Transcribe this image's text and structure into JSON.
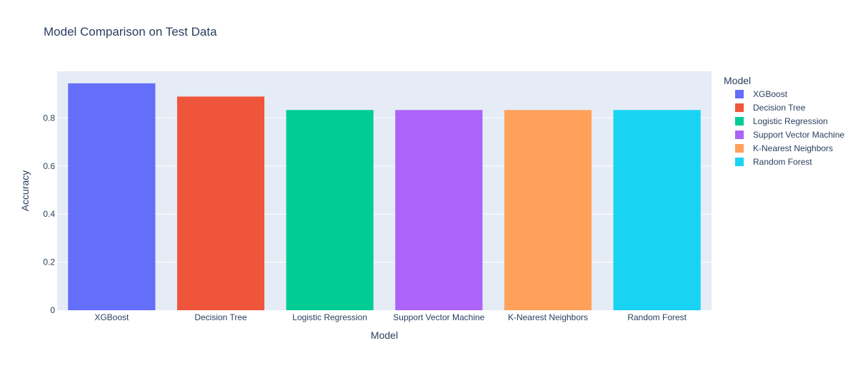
{
  "chart_data": {
    "type": "bar",
    "title": "Model Comparison on Test Data",
    "xlabel": "Model",
    "ylabel": "Accuracy",
    "categories": [
      "XGBoost",
      "Decision Tree",
      "Logistic Regression",
      "Support Vector Machine",
      "K-Nearest Neighbors",
      "Random Forest"
    ],
    "values": [
      0.944,
      0.889,
      0.833,
      0.833,
      0.833,
      0.833
    ],
    "colors": [
      "#636efa",
      "#ef553b",
      "#00cc96",
      "#ab63fa",
      "#ffa15a",
      "#19d3f3"
    ],
    "ylim": [
      0,
      0.994
    ],
    "yticks": [
      0,
      0.2,
      0.4,
      0.6,
      0.8
    ],
    "ytick_labels": [
      "0",
      "0.2",
      "0.4",
      "0.6",
      "0.8"
    ],
    "grid": true,
    "legend": {
      "title": "Model",
      "placement": "right",
      "entries": [
        "XGBoost",
        "Decision Tree",
        "Logistic Regression",
        "Support Vector Machine",
        "K-Nearest Neighbors",
        "Random Forest"
      ]
    },
    "plot_background": "#e5ecf6",
    "text_color": "#2a3f5f"
  }
}
